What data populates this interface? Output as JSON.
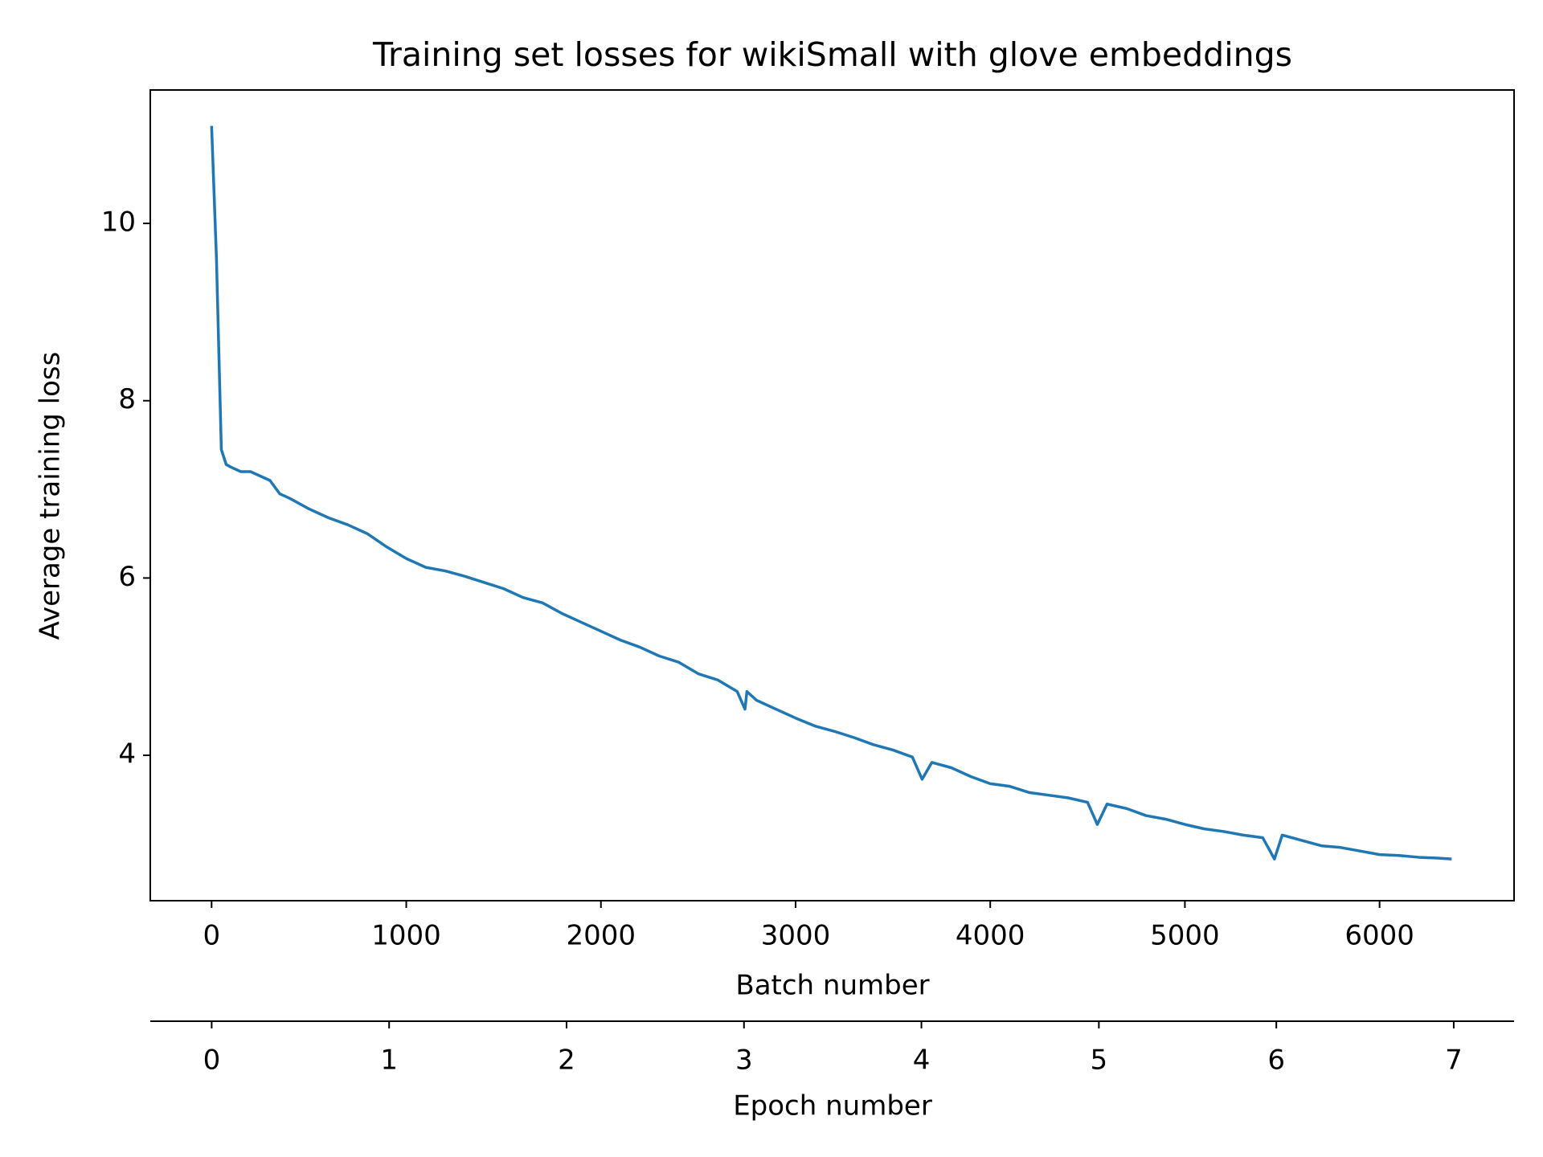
{
  "chart_data": {
    "type": "line",
    "title": "Training set losses for wikiSmall with glove embeddings",
    "xlabel": "Batch number",
    "ylabel": "Average training loss",
    "x2label": "Epoch number",
    "x": [
      0,
      25,
      50,
      75,
      100,
      150,
      200,
      250,
      300,
      350,
      400,
      500,
      600,
      700,
      800,
      900,
      1000,
      1100,
      1200,
      1300,
      1400,
      1500,
      1600,
      1700,
      1800,
      1900,
      2000,
      2100,
      2200,
      2300,
      2400,
      2500,
      2600,
      2700,
      2740,
      2750,
      2800,
      2900,
      3000,
      3100,
      3200,
      3300,
      3400,
      3500,
      3600,
      3650,
      3700,
      3800,
      3900,
      4000,
      4100,
      4200,
      4300,
      4400,
      4500,
      4550,
      4600,
      4700,
      4800,
      4900,
      5000,
      5100,
      5200,
      5300,
      5400,
      5460,
      5500,
      5600,
      5700,
      5800,
      5900,
      6000,
      6100,
      6200,
      6300,
      6370
    ],
    "series": [
      {
        "name": "Training loss",
        "color": "#1f77b4",
        "values": [
          11.1,
          9.6,
          7.45,
          7.28,
          7.25,
          7.2,
          7.2,
          7.15,
          7.1,
          6.95,
          6.9,
          6.78,
          6.68,
          6.6,
          6.5,
          6.35,
          6.22,
          6.12,
          6.08,
          6.02,
          5.95,
          5.88,
          5.78,
          5.72,
          5.6,
          5.5,
          5.4,
          5.3,
          5.22,
          5.12,
          5.05,
          4.92,
          4.85,
          4.72,
          4.52,
          4.72,
          4.62,
          4.52,
          4.42,
          4.33,
          4.27,
          4.2,
          4.12,
          4.06,
          3.98,
          3.73,
          3.92,
          3.86,
          3.76,
          3.68,
          3.65,
          3.58,
          3.55,
          3.52,
          3.47,
          3.22,
          3.45,
          3.4,
          3.32,
          3.28,
          3.22,
          3.17,
          3.14,
          3.1,
          3.07,
          2.83,
          3.1,
          3.04,
          2.98,
          2.96,
          2.92,
          2.88,
          2.87,
          2.85,
          2.84,
          2.83
        ]
      }
    ],
    "xlim": [
      -315,
      6691
    ],
    "xticks": [
      0,
      1000,
      2000,
      3000,
      4000,
      5000,
      6000
    ],
    "x2lim": [
      -0.346,
      7.34
    ],
    "x2ticks": [
      0,
      1,
      2,
      3,
      4,
      5,
      6,
      7
    ],
    "ylim": [
      2.36,
      11.505
    ],
    "yticks": [
      4,
      6,
      8,
      10
    ],
    "grid": false
  }
}
